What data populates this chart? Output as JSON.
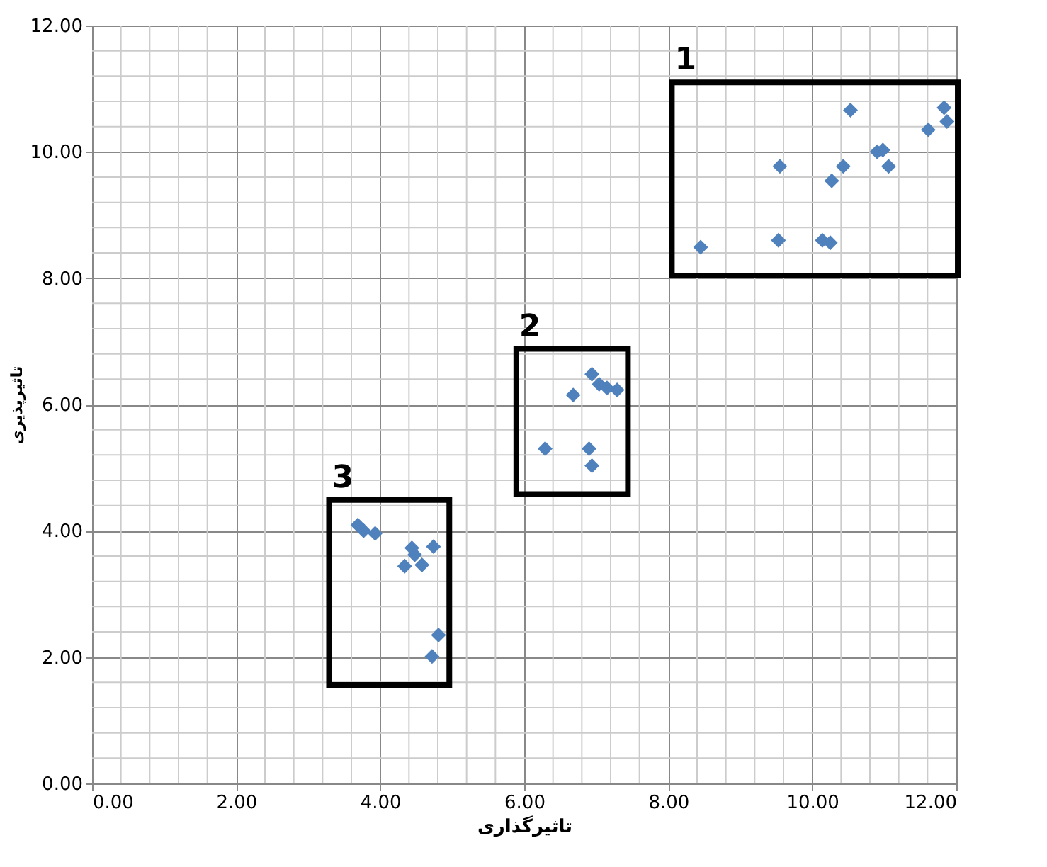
{
  "chart_data": {
    "type": "scatter",
    "xlabel": "تاثیرگذاری",
    "ylabel": "تاثیرپذیری",
    "series": [
      {
        "color": "#4f81bd",
        "x": [
          8.45,
          9.53,
          9.55,
          10.14,
          10.25,
          10.27,
          10.43,
          10.53,
          10.9,
          10.98,
          11.06,
          11.61,
          11.83,
          11.87
        ],
        "values": [
          8.49,
          8.6,
          9.77,
          8.6,
          8.56,
          9.54,
          9.77,
          10.66,
          10.0,
          10.03,
          9.77,
          10.35,
          10.7,
          10.48
        ]
      },
      {
        "color": "#4f81bd",
        "x": [
          6.29,
          6.68,
          6.94,
          7.04,
          7.15,
          7.29,
          6.9,
          6.94
        ],
        "values": [
          5.3,
          6.15,
          6.48,
          6.32,
          6.26,
          6.23,
          5.3,
          5.03
        ]
      },
      {
        "color": "#4f81bd",
        "x": [
          3.69,
          3.77,
          3.93,
          4.34,
          4.48,
          4.44,
          4.58,
          4.74,
          4.81,
          4.72
        ],
        "values": [
          4.09,
          4.0,
          3.96,
          3.44,
          3.62,
          3.73,
          3.46,
          3.75,
          2.35,
          2.01
        ]
      }
    ],
    "annotations": [
      "1",
      "2",
      "3"
    ],
    "xlim": [
      0,
      12
    ],
    "ylim": [
      0,
      12
    ],
    "xticks": [
      {
        "value": 0,
        "label": "0.00"
      },
      {
        "value": 2,
        "label": "2.00"
      },
      {
        "value": 4,
        "label": "4.00"
      },
      {
        "value": 6,
        "label": "6.00"
      },
      {
        "value": 8,
        "label": "8.00"
      },
      {
        "value": 10,
        "label": "10.00"
      },
      {
        "value": 12,
        "label": "12.00"
      }
    ],
    "yticks": [
      {
        "value": 0,
        "label": "0.00"
      },
      {
        "value": 2,
        "label": "2.00"
      },
      {
        "value": 4,
        "label": "4.00"
      },
      {
        "value": 6,
        "label": "6.00"
      },
      {
        "value": 8,
        "label": "8.00"
      },
      {
        "value": 10,
        "label": "10.00"
      },
      {
        "value": 12,
        "label": "12.00"
      }
    ],
    "grid": true,
    "marker": "diamond"
  }
}
